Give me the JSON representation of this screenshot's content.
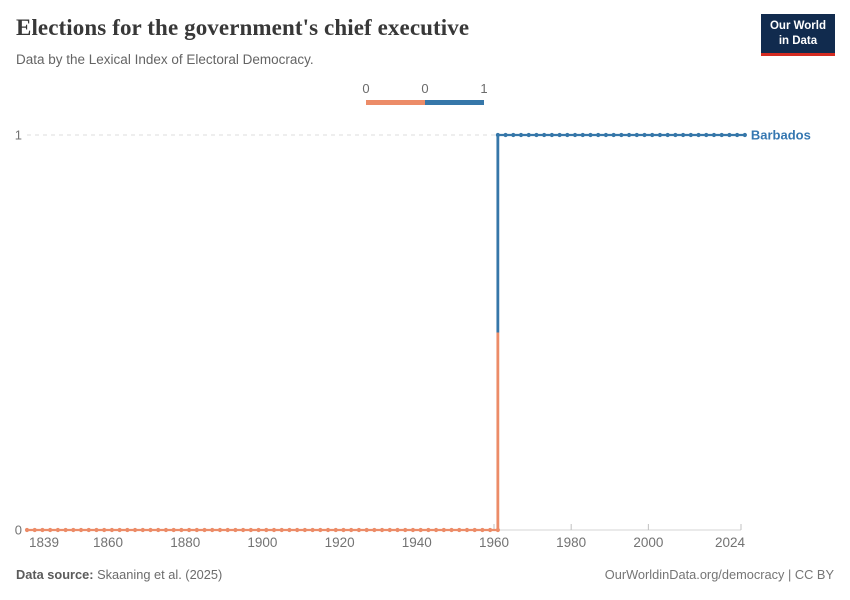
{
  "header": {
    "title": "Elections for the government's chief executive",
    "subtitle": "Data by the Lexical Index of Electoral Democracy.",
    "logo": {
      "line1": "Our World",
      "line2": "in Data"
    }
  },
  "legend": {
    "tick_labels": [
      "0",
      "0",
      "1"
    ],
    "segments": [
      {
        "value": 0,
        "color": "#EC8C68"
      },
      {
        "value": 1,
        "color": "#3677A9"
      }
    ]
  },
  "chart_data": {
    "type": "line",
    "subtype": "step",
    "title": "Elections for the government's chief executive",
    "entity": "Barbados",
    "entity_label_color": "#3577B1",
    "series": [
      {
        "name": "Barbados",
        "segments": [
          {
            "start_year": 1839,
            "end_year": 1961,
            "value": 0,
            "color": "#EC8C68"
          },
          {
            "start_year": 1961,
            "end_year": 2025,
            "value": 1,
            "color": "#3677A9"
          }
        ]
      }
    ],
    "x_axis_range": [
      1839,
      2024
    ],
    "x_tick_labels": [
      1839,
      1860,
      1880,
      1900,
      1920,
      1940,
      1960,
      1980,
      2000,
      2024
    ],
    "x_tick_marks": [
      1960,
      1980,
      2000,
      2024
    ],
    "y_ticks": [
      0,
      1
    ],
    "ylim": [
      0,
      1
    ],
    "grid": "dashed-gridline-at-1",
    "axis_color": "#d4d4d4",
    "gridline_color": "#dcdcdc",
    "tick_label_color": "#737373"
  },
  "footer": {
    "source_label": "Data source:",
    "source_value": " Skaaning et al. (2025)",
    "credit": "OurWorldinData.org/democracy | CC BY"
  },
  "colors": {
    "value0_orange": "#EC8C68",
    "value1_blue": "#3677A9",
    "logo_navy": "#112B4E",
    "logo_red": "#D42B21",
    "title_text": "#383838",
    "subtitle_text": "#646464"
  }
}
